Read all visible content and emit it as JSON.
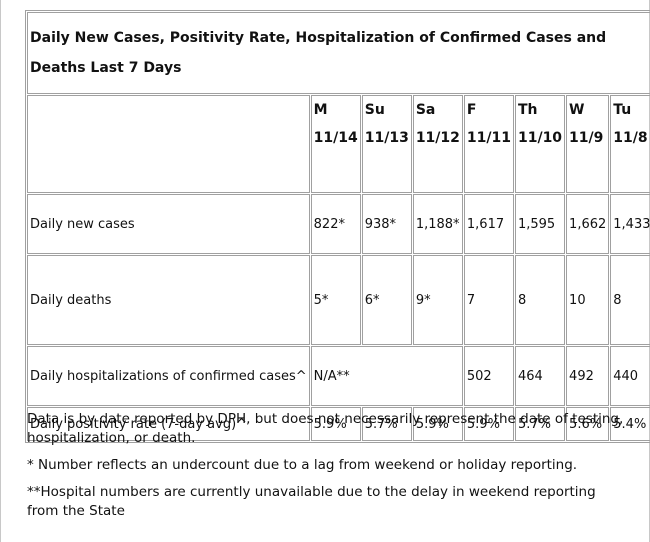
{
  "title": "Daily New Cases, Positivity Rate, Hospitalization of Confirmed Cases and Deaths Last 7 Days",
  "columns": [
    {
      "day": "M",
      "date": "11/14"
    },
    {
      "day": "Su",
      "date": "11/13"
    },
    {
      "day": "Sa",
      "date": "11/12"
    },
    {
      "day": "F",
      "date": "11/11"
    },
    {
      "day": "Th",
      "date": "11/10"
    },
    {
      "day": "W",
      "date": "11/9"
    },
    {
      "day": "Tu",
      "date": "11/8"
    }
  ],
  "rows": {
    "cases": {
      "label": "Daily new cases",
      "values": [
        "822*",
        "938*",
        "1,188*",
        "1,617",
        "1,595",
        "1,662",
        "1,433"
      ]
    },
    "deaths": {
      "label": "Daily deaths",
      "values": [
        "5*",
        "6*",
        "9*",
        "7",
        "8",
        "10",
        "8"
      ]
    },
    "hospitalizations": {
      "label": "Daily hospitalizations of confirmed cases^",
      "na_text": "N/A**",
      "values": [
        "502",
        "464",
        "492",
        "440"
      ]
    },
    "positivity": {
      "label": "Daily positivity rate (7-day avg)^",
      "values": [
        "5.9%",
        "5.7%",
        "5.9%",
        "5.9%",
        "5.7%",
        "5.6%",
        "5.4%"
      ]
    }
  },
  "notes": [
    "Data is by date reported by DPH, but does not necessarily represent the date of testing, hospitalization, or death.",
    "* Number reflects an undercount due to a lag from weekend or holiday reporting.",
    "**Hospital numbers are currently unavailable due to the delay in weekend reporting from the State"
  ]
}
